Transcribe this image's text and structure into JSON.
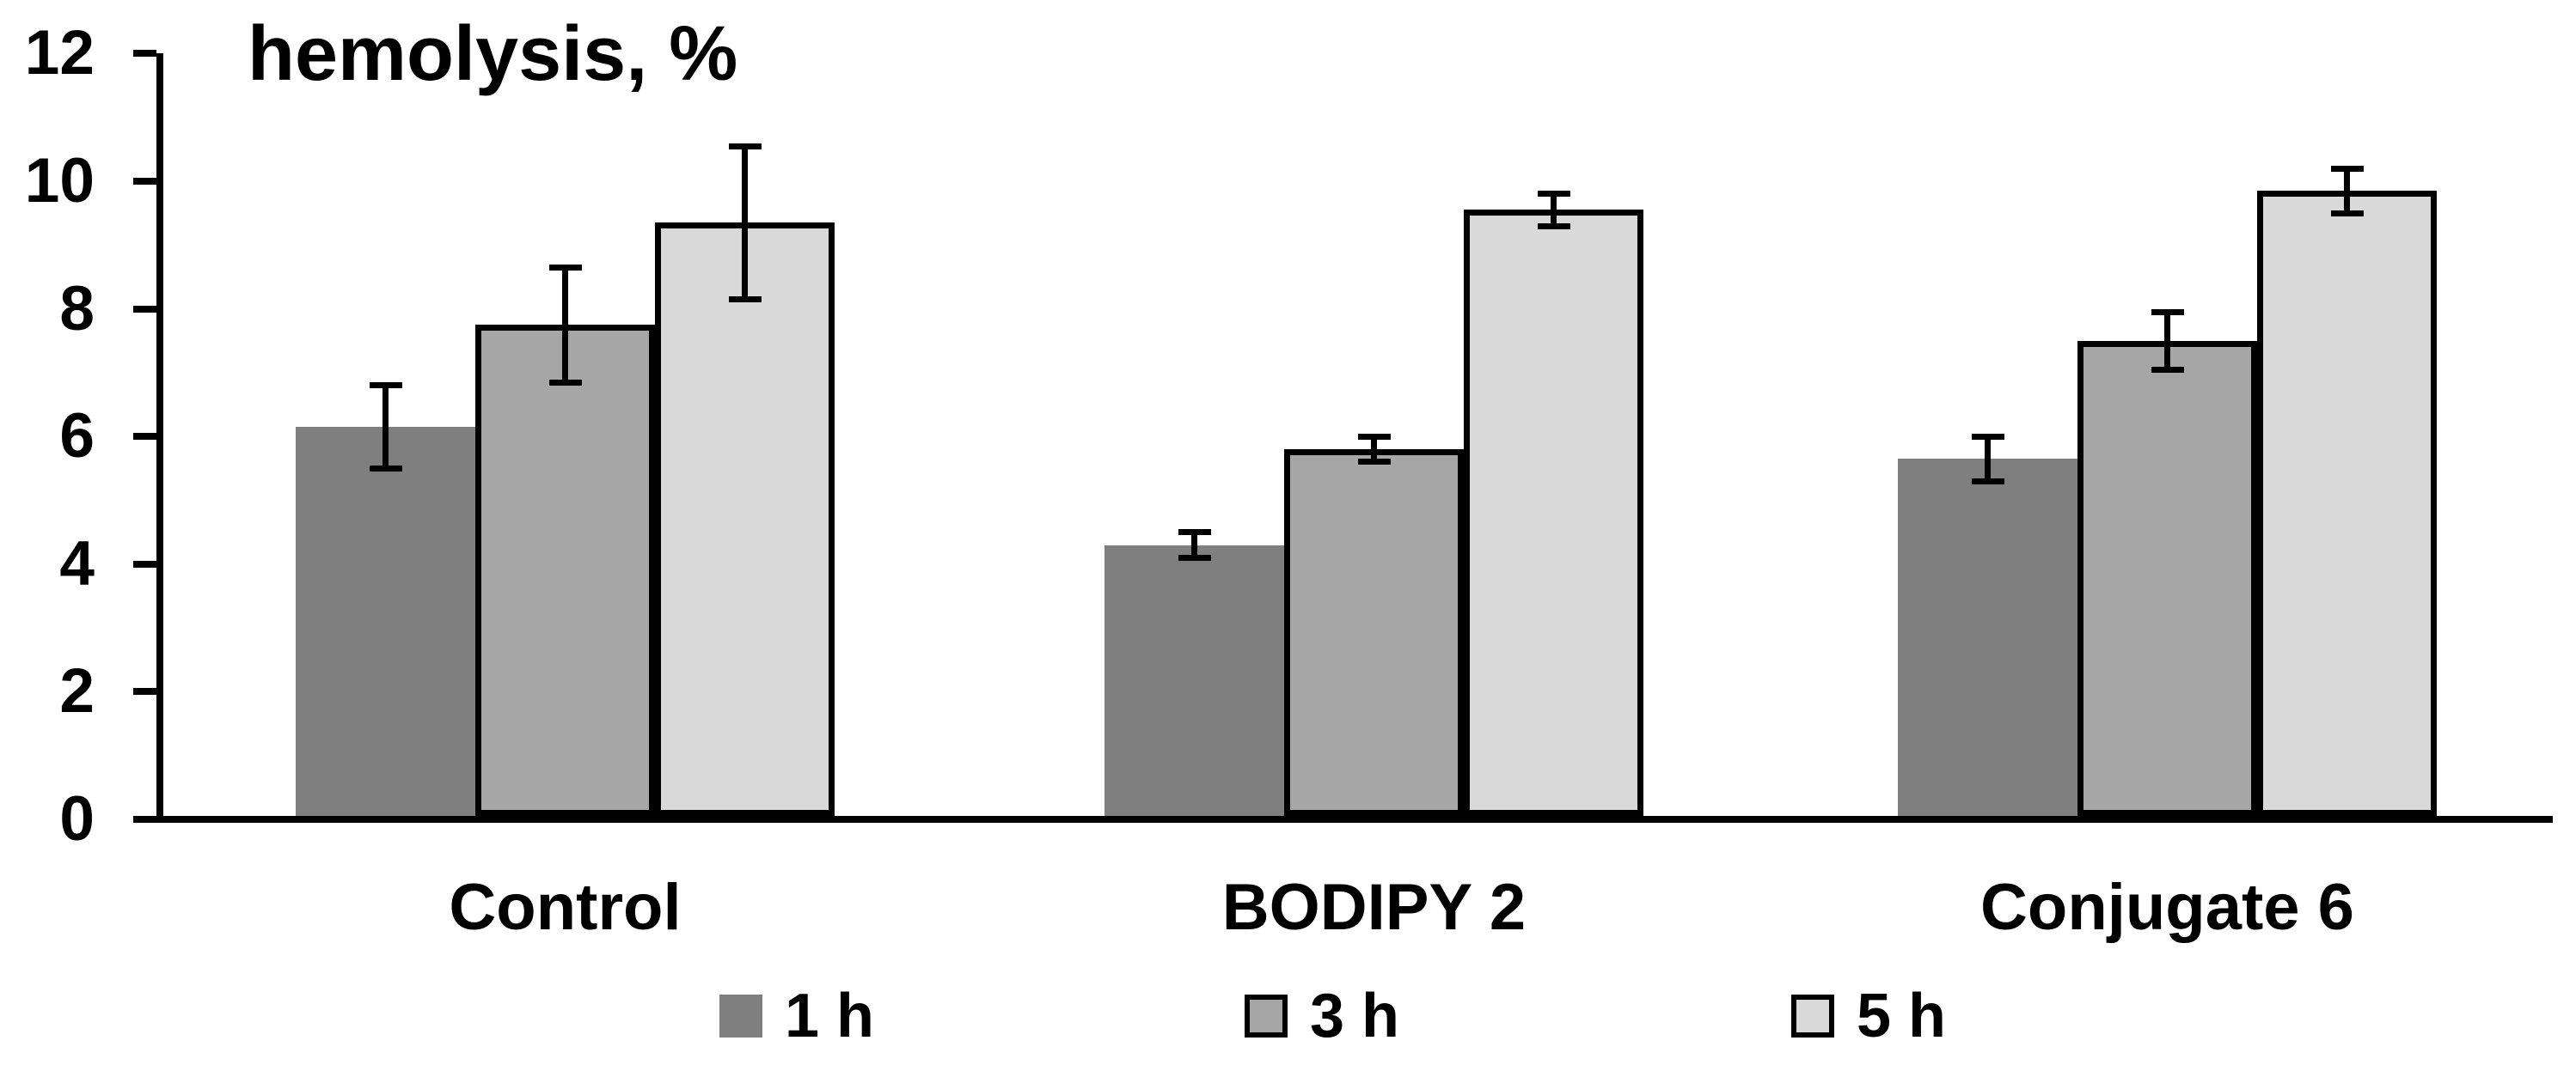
{
  "chart_data": {
    "type": "bar",
    "title": "hemolysis, %",
    "ylabel": "hemolysis, %",
    "xlabel": "",
    "categories": [
      "Control",
      "BODIPY 2",
      "Conjugate 6"
    ],
    "series": [
      {
        "name": "1 h",
        "color": "#7f7f7f",
        "outlined": false,
        "values": [
          6.15,
          4.3,
          5.65
        ],
        "errors": [
          0.65,
          0.2,
          0.35
        ]
      },
      {
        "name": "3 h",
        "color": "#a6a6a6",
        "outlined": true,
        "values": [
          7.75,
          5.8,
          7.5
        ],
        "errors": [
          0.9,
          0.2,
          0.45
        ]
      },
      {
        "name": "5 h",
        "color": "#d9d9d9",
        "outlined": true,
        "values": [
          9.35,
          9.55,
          9.85
        ],
        "errors": [
          1.2,
          0.25,
          0.35
        ]
      }
    ],
    "y_axis": {
      "min": 0,
      "max": 12,
      "step": 2,
      "tick_labels": [
        "0",
        "2",
        "4",
        "6",
        "8",
        "10",
        "12"
      ]
    },
    "legend": {
      "position": "bottom",
      "entries": [
        "1 h",
        "3 h",
        "5 h"
      ]
    },
    "grid": false,
    "error_bars": true,
    "axis_color": "#000000",
    "background_color": "#ffffff"
  }
}
